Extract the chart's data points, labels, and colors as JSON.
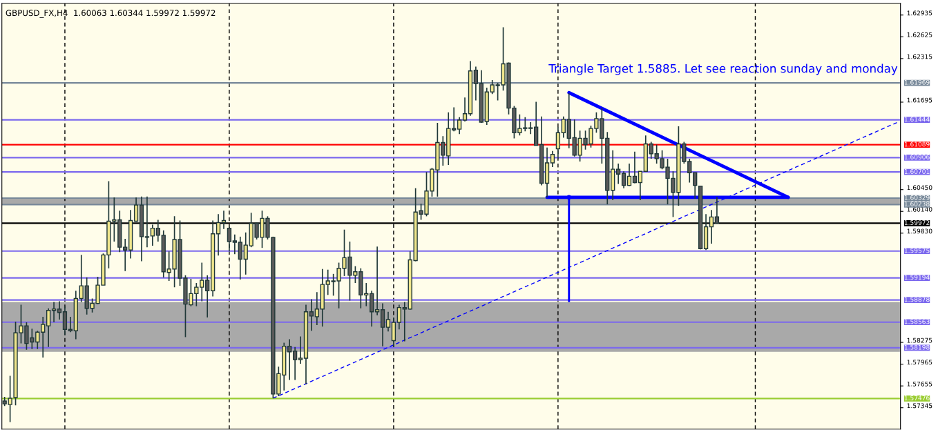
{
  "chart_data": {
    "type": "candlestick",
    "title": "GBPUSD_FX,H4  1.60063 1.60344 1.59972 1.59972",
    "annotations": [
      "Triangle Target 1.5885. Let see reaction sunday and monday"
    ],
    "categories": [
      null,
      null,
      null,
      null,
      null,
      null,
      null,
      null,
      null,
      null,
      null,
      null,
      null,
      null,
      null,
      null,
      null,
      null,
      null,
      null,
      null,
      null,
      null,
      null,
      null,
      null,
      null,
      null,
      null,
      null,
      null,
      null,
      null,
      null,
      null,
      null,
      null,
      null,
      null,
      null,
      null,
      null,
      null,
      null,
      null,
      null,
      null,
      null,
      null,
      null,
      null,
      null,
      null,
      null,
      null,
      null,
      null,
      null,
      null,
      null,
      null,
      null,
      null,
      null,
      null,
      null,
      null,
      null,
      null,
      null,
      null,
      null,
      null,
      null,
      null,
      null,
      null,
      null,
      null,
      null,
      null,
      null,
      null,
      null,
      null,
      null,
      null,
      null,
      null,
      null,
      null,
      null,
      null,
      null,
      null,
      null,
      null,
      null,
      null,
      null,
      null,
      null,
      null,
      null,
      null,
      null,
      null,
      null,
      null,
      null,
      null,
      null,
      null,
      null,
      null,
      null,
      null,
      null,
      null,
      null,
      null,
      null,
      null,
      null,
      null,
      null,
      null,
      null,
      null,
      null,
      null,
      null,
      null,
      null,
      null,
      null,
      null,
      null,
      null,
      null,
      null,
      null,
      null,
      null,
      null,
      null,
      null,
      null,
      null,
      null,
      null,
      null,
      null,
      null,
      null,
      null,
      null,
      null,
      null,
      null,
      null,
      null,
      null,
      null
    ],
    "ohlc": [
      [
        1.5744,
        1.575,
        1.5737,
        1.574
      ],
      [
        1.5739,
        1.578,
        1.5714,
        1.5748
      ],
      [
        1.5749,
        1.5857,
        1.5738,
        1.5841
      ],
      [
        1.5841,
        1.5881,
        1.5826,
        1.5851
      ],
      [
        1.5851,
        1.5856,
        1.5817,
        1.5826
      ],
      [
        1.5834,
        1.5847,
        1.5818,
        1.5828
      ],
      [
        1.5828,
        1.5844,
        1.5818,
        1.5842
      ],
      [
        1.5842,
        1.5864,
        1.5806,
        1.5853
      ],
      [
        1.5851,
        1.5876,
        1.5821,
        1.5873
      ],
      [
        1.5873,
        1.5885,
        1.5856,
        1.5875
      ],
      [
        1.5875,
        1.5886,
        1.586,
        1.587
      ],
      [
        1.5871,
        1.5879,
        1.5838,
        1.5846
      ],
      [
        1.5846,
        1.5864,
        1.5842,
        1.5844
      ],
      [
        1.5844,
        1.5901,
        1.5832,
        1.589
      ],
      [
        1.589,
        1.5952,
        1.5885,
        1.5908
      ],
      [
        1.5908,
        1.592,
        1.5867,
        1.5876
      ],
      [
        1.5876,
        1.589,
        1.587,
        1.5883
      ],
      [
        1.5883,
        1.5921,
        1.5882,
        1.5909
      ],
      [
        1.5909,
        1.5954,
        1.5909,
        1.5952
      ],
      [
        1.5952,
        1.6057,
        1.5933,
        1.6
      ],
      [
        1.6,
        1.6034,
        1.5971,
        1.6002
      ],
      [
        1.6002,
        1.6015,
        1.5956,
        1.5963
      ],
      [
        1.5963,
        1.5975,
        1.5929,
        1.5959
      ],
      [
        1.5959,
        1.6016,
        1.5947,
        1.6001
      ],
      [
        1.6,
        1.6034,
        1.5999,
        1.6023
      ],
      [
        1.6023,
        1.6035,
        1.5943,
        1.5978
      ],
      [
        1.5978,
        1.6035,
        1.5963,
        1.5977
      ],
      [
        1.5979,
        1.5995,
        1.5965,
        1.599
      ],
      [
        1.599,
        1.6002,
        1.5971,
        1.598
      ],
      [
        1.598,
        1.5987,
        1.592,
        1.5928
      ],
      [
        1.5927,
        1.5957,
        1.5915,
        1.5932
      ],
      [
        1.5932,
        1.6007,
        1.5906,
        1.5974
      ],
      [
        1.5974,
        1.6001,
        1.5908,
        1.5919
      ],
      [
        1.5919,
        1.5923,
        1.5835,
        1.5882
      ],
      [
        1.5881,
        1.5918,
        1.5879,
        1.5897
      ],
      [
        1.5897,
        1.5912,
        1.5879,
        1.5906
      ],
      [
        1.5906,
        1.5941,
        1.5886,
        1.5916
      ],
      [
        1.5916,
        1.5923,
        1.5863,
        1.5901
      ],
      [
        1.5901,
        1.6001,
        1.5893,
        1.5982
      ],
      [
        1.5982,
        1.601,
        1.5951,
        1.5998
      ],
      [
        1.5998,
        1.6015,
        1.5989,
        1.6001
      ],
      [
        1.599,
        1.5992,
        1.5957,
        1.5971
      ],
      [
        1.5972,
        1.5981,
        1.5953,
        1.597
      ],
      [
        1.597,
        1.5978,
        1.5917,
        1.5946
      ],
      [
        1.5946,
        1.5984,
        1.5924,
        1.5966
      ],
      [
        1.5965,
        1.6012,
        1.5963,
        1.5997
      ],
      [
        1.5997,
        1.5998,
        1.5974,
        1.5977
      ],
      [
        1.5977,
        1.6015,
        1.5962,
        1.6004
      ],
      [
        1.6004,
        1.6007,
        1.5974,
        1.5977
      ],
      [
        1.5977,
        1.5978,
        1.5748,
        1.5754
      ],
      [
        1.5754,
        1.5793,
        1.5751,
        1.5783
      ],
      [
        1.5781,
        1.5827,
        1.5759,
        1.5822
      ],
      [
        1.5822,
        1.5832,
        1.5774,
        1.5814
      ],
      [
        1.5815,
        1.5821,
        1.5774,
        1.5803
      ],
      [
        1.5803,
        1.5836,
        1.5797,
        1.5805
      ],
      [
        1.5805,
        1.5881,
        1.5768,
        1.5871
      ],
      [
        1.5871,
        1.5889,
        1.5844,
        1.5865
      ],
      [
        1.5864,
        1.5899,
        1.5852,
        1.5875
      ],
      [
        1.5875,
        1.5932,
        1.585,
        1.591
      ],
      [
        1.591,
        1.5931,
        1.5895,
        1.5915
      ],
      [
        1.5914,
        1.5925,
        1.5894,
        1.5915
      ],
      [
        1.5915,
        1.5941,
        1.5876,
        1.5933
      ],
      [
        1.5933,
        1.5988,
        1.5922,
        1.5948
      ],
      [
        1.5949,
        1.5971,
        1.5887,
        1.5923
      ],
      [
        1.5923,
        1.5936,
        1.5912,
        1.5928
      ],
      [
        1.5928,
        1.5933,
        1.5876,
        1.5895
      ],
      [
        1.5895,
        1.5912,
        1.5879,
        1.5897
      ],
      [
        1.5897,
        1.5901,
        1.585,
        1.5871
      ],
      [
        1.5871,
        1.5964,
        1.5866,
        1.5874
      ],
      [
        1.5874,
        1.5883,
        1.5822,
        1.5849
      ],
      [
        1.5849,
        1.5871,
        1.5843,
        1.586
      ],
      [
        1.583,
        1.5863,
        1.5821,
        1.5856
      ],
      [
        1.5856,
        1.5881,
        1.5846,
        1.5877
      ],
      [
        1.5877,
        1.5885,
        1.5829,
        1.5875
      ],
      [
        1.5875,
        1.5957,
        1.5874,
        1.5945
      ],
      [
        1.5944,
        1.6047,
        1.5943,
        1.6013
      ],
      [
        1.6015,
        1.6025,
        1.6002,
        1.601
      ],
      [
        1.601,
        1.607,
        1.6007,
        1.6043
      ],
      [
        1.6043,
        1.6076,
        1.6035,
        1.6074
      ],
      [
        1.6073,
        1.614,
        1.6035,
        1.6112
      ],
      [
        1.6112,
        1.6121,
        1.6079,
        1.6094
      ],
      [
        1.6093,
        1.6155,
        1.608,
        1.6132
      ],
      [
        1.6132,
        1.6162,
        1.6128,
        1.613
      ],
      [
        1.6131,
        1.6148,
        1.6124,
        1.6144
      ],
      [
        1.6144,
        1.6176,
        1.6142,
        1.6153
      ],
      [
        1.6153,
        1.6228,
        1.615,
        1.6214
      ],
      [
        1.6215,
        1.622,
        1.6172,
        1.6196
      ],
      [
        1.6196,
        1.6215,
        1.614,
        1.6141
      ],
      [
        1.6142,
        1.619,
        1.6137,
        1.6184
      ],
      [
        1.6184,
        1.6201,
        1.6181,
        1.6194
      ],
      [
        1.6194,
        1.6197,
        1.6172,
        1.6193
      ],
      [
        1.6194,
        1.6276,
        1.6186,
        1.6224
      ],
      [
        1.6225,
        1.6226,
        1.6152,
        1.6161
      ],
      [
        1.6161,
        1.6164,
        1.6118,
        1.6126
      ],
      [
        1.6126,
        1.6152,
        1.6122,
        1.6132
      ],
      [
        1.6133,
        1.6148,
        1.6128,
        1.6132
      ],
      [
        1.6132,
        1.6141,
        1.6124,
        1.6133
      ],
      [
        1.6134,
        1.617,
        1.6108,
        1.6108
      ],
      [
        1.6109,
        1.6149,
        1.6051,
        1.6054
      ],
      [
        1.6054,
        1.6105,
        1.6034,
        1.6083
      ],
      [
        1.6083,
        1.61,
        1.6077,
        1.6095
      ],
      [
        1.6103,
        1.6134,
        1.6089,
        1.6126
      ],
      [
        1.6126,
        1.6149,
        1.6119,
        1.6145
      ],
      [
        1.6145,
        1.6182,
        1.6104,
        1.6118
      ],
      [
        1.6119,
        1.6145,
        1.6092,
        1.6094
      ],
      [
        1.6094,
        1.6129,
        1.6085,
        1.6118
      ],
      [
        1.6118,
        1.6129,
        1.6102,
        1.6109
      ],
      [
        1.611,
        1.6136,
        1.6105,
        1.6132
      ],
      [
        1.6132,
        1.6155,
        1.6126,
        1.6146
      ],
      [
        1.6146,
        1.6161,
        1.6082,
        1.6118
      ],
      [
        1.6118,
        1.6127,
        1.6024,
        1.6044
      ],
      [
        1.6044,
        1.6101,
        1.603,
        1.6074
      ],
      [
        1.6074,
        1.6082,
        1.6053,
        1.6067
      ],
      [
        1.6068,
        1.6071,
        1.6047,
        1.6051
      ],
      [
        1.6051,
        1.6082,
        1.605,
        1.6064
      ],
      [
        1.6064,
        1.6099,
        1.6054,
        1.6055
      ],
      [
        1.6055,
        1.6071,
        1.603,
        1.6071
      ],
      [
        1.6071,
        1.6122,
        1.6071,
        1.611
      ],
      [
        1.611,
        1.6113,
        1.6089,
        1.6096
      ],
      [
        1.6096,
        1.6109,
        1.6082,
        1.6089
      ],
      [
        1.6089,
        1.6101,
        1.6074,
        1.6076
      ],
      [
        1.6077,
        1.6089,
        1.6024,
        1.6061
      ],
      [
        1.6061,
        1.6071,
        1.6006,
        1.6041
      ],
      [
        1.6041,
        1.6135,
        1.6022,
        1.611
      ],
      [
        1.611,
        1.6113,
        1.6082,
        1.6085
      ],
      [
        1.6085,
        1.6089,
        1.6055,
        1.6069
      ],
      [
        1.6069,
        1.6069,
        1.6032,
        1.6051
      ],
      [
        1.605,
        1.605,
        1.596,
        1.5961
      ],
      [
        1.5961,
        1.601,
        1.5959,
        1.5992
      ],
      [
        1.5992,
        1.6016,
        1.5968,
        1.6006
      ],
      [
        1.60063,
        1.60344,
        1.59972,
        1.59972
      ],
      null,
      null,
      null,
      null,
      null,
      null,
      null,
      null,
      null,
      null,
      null,
      null,
      null,
      null,
      null,
      null,
      null,
      null,
      null,
      null,
      null,
      null,
      null,
      null,
      null,
      null,
      null,
      null,
      null,
      null,
      null,
      null,
      null
    ],
    "colors": [
      "#5a5a5a",
      "#f0e68c",
      "#f0e68c",
      "#f0e68c",
      "#5a5a5a",
      "#5a5a5a",
      "#f0e68c",
      "#f0e68c",
      "#f0e68c",
      "#f0e68c",
      "#5a5a5a",
      "#5a5a5a",
      "#5a5a5a",
      "#f0e68c",
      "#f0e68c",
      "#5a5a5a",
      "#f0e68c",
      "#f0e68c",
      "#f0e68c",
      "#f0e68c",
      "#f0e68c",
      "#5a5a5a",
      "#5a5a5a",
      "#f0e68c",
      "#f0e68c",
      "#5a5a5a",
      "#5a5a5a",
      "#f0e68c",
      "#5a5a5a",
      "#5a5a5a",
      "#f0e68c",
      "#f0e68c",
      "#5a5a5a",
      "#5a5a5a",
      "#f0e68c",
      "#f0e68c",
      "#f0e68c",
      "#5a5a5a",
      "#f0e68c",
      "#f0e68c",
      "#f0e68c",
      "#5a5a5a",
      "#5a5a5a",
      "#5a5a5a",
      "#f0e68c",
      "#f0e68c",
      "#5a5a5a",
      "#f0e68c",
      "#5a5a5a",
      "#5a5a5a",
      "#f0e68c",
      "#f0e68c",
      "#5a5a5a",
      "#5a5a5a",
      "#f0e68c",
      "#f0e68c",
      "#5a5a5a",
      "#f0e68c",
      "#f0e68c",
      "#f0e68c",
      "#f0e68c",
      "#f0e68c",
      "#f0e68c",
      "#5a5a5a",
      "#f0e68c",
      "#5a5a5a",
      "#f0e68c",
      "#5a5a5a",
      "#f0e68c",
      "#5a5a5a",
      "#f0e68c",
      "#f0e68c",
      "#f0e68c",
      "#5a5a5a",
      "#f0e68c",
      "#f0e68c",
      "#5a5a5a",
      "#f0e68c",
      "#f0e68c",
      "#f0e68c",
      "#5a5a5a",
      "#f0e68c",
      "#5a5a5a",
      "#f0e68c",
      "#f0e68c",
      "#f0e68c",
      "#5a5a5a",
      "#5a5a5a",
      "#f0e68c",
      "#f0e68c",
      "#5a5a5a",
      "#f0e68c",
      "#5a5a5a",
      "#5a5a5a",
      "#f0e68c",
      "#5a5a5a",
      "#f0e68c",
      "#5a5a5a",
      "#5a5a5a",
      "#f0e68c",
      "#f0e68c",
      "#f0e68c",
      "#f0e68c",
      "#5a5a5a",
      "#5a5a5a",
      "#f0e68c",
      "#5a5a5a",
      "#f0e68c",
      "#f0e68c",
      "#5a5a5a",
      "#5a5a5a",
      "#f0e68c",
      "#5a5a5a",
      "#5a5a5a",
      "#f0e68c",
      "#5a5a5a",
      "#f0e68c",
      "#f0e68c",
      "#5a5a5a",
      "#5a5a5a",
      "#5a5a5a",
      "#5a5a5a",
      "#5a5a5a",
      "#f0e68c",
      "#5a5a5a",
      "#5a5a5a",
      "#5a5a5a",
      "#5a5a5a",
      "#f0e68c",
      "#f0e68c",
      "#5a5a5a",
      null,
      null,
      null,
      null,
      null,
      null,
      null,
      null,
      null,
      null,
      null,
      null,
      null,
      null,
      null,
      null,
      null,
      null,
      null,
      null,
      null,
      null,
      null,
      null,
      null,
      null,
      null,
      null,
      null,
      null,
      null,
      null,
      null
    ],
    "series": [
      {
        "type": "line",
        "color": "#0000ff",
        "line_style": "dashed",
        "values": [
          null,
          null,
          null,
          null,
          null,
          null,
          null,
          null,
          null,
          null,
          null,
          null,
          null,
          null,
          null,
          null,
          null,
          null,
          null,
          null,
          null,
          null,
          null,
          null,
          null,
          null,
          null,
          null,
          null,
          null,
          null,
          null,
          null,
          null,
          null,
          null,
          null,
          null,
          null,
          null,
          null,
          null,
          null,
          null,
          null,
          null,
          null,
          null,
          null,
          1.5748,
          null,
          null,
          null,
          null,
          null,
          null,
          null,
          null,
          null,
          null,
          null,
          null,
          null,
          null,
          null,
          null,
          null,
          null,
          null,
          null,
          null,
          null,
          null,
          null,
          null,
          null,
          null,
          null,
          null,
          null,
          null,
          null,
          null,
          null,
          null,
          null,
          null,
          null,
          null,
          null,
          null,
          null,
          null,
          null,
          null,
          null,
          null,
          null,
          null,
          null,
          null,
          null,
          null,
          null,
          null,
          null,
          null,
          null,
          null,
          null,
          null,
          null,
          null,
          null,
          null,
          null,
          null,
          null,
          null,
          null,
          null,
          null,
          null,
          null,
          null,
          null,
          null,
          null,
          null,
          null,
          null,
          null,
          null,
          null,
          null,
          null,
          null,
          null,
          null,
          null,
          null,
          null,
          null,
          null,
          null,
          null,
          null,
          null,
          null,
          null,
          null,
          null,
          null,
          null,
          null,
          null,
          null,
          null,
          null,
          null,
          null,
          null,
          null,
          1.6141
        ]
      },
      {
        "type": "line",
        "color": "#0000ff",
        "line_style": "solid",
        "values": [
          null,
          null,
          null,
          null,
          null,
          null,
          null,
          null,
          null,
          null,
          null,
          null,
          null,
          null,
          null,
          null,
          null,
          null,
          null,
          null,
          null,
          null,
          null,
          null,
          null,
          null,
          null,
          null,
          null,
          null,
          null,
          null,
          null,
          null,
          null,
          null,
          null,
          null,
          null,
          null,
          null,
          null,
          null,
          null,
          null,
          null,
          null,
          null,
          null,
          null,
          null,
          null,
          null,
          null,
          null,
          null,
          null,
          null,
          null,
          null,
          null,
          null,
          null,
          null,
          null,
          null,
          null,
          null,
          null,
          null,
          null,
          null,
          null,
          null,
          null,
          null,
          null,
          null,
          null,
          null,
          null,
          null,
          null,
          null,
          null,
          null,
          null,
          null,
          null,
          null,
          null,
          null,
          null,
          null,
          null,
          null,
          null,
          null,
          null,
          null,
          null,
          null,
          null,
          1.6183,
          null,
          null,
          null,
          null,
          null,
          null,
          null,
          null,
          null,
          null,
          null,
          null,
          null,
          null,
          null,
          null,
          null,
          null,
          null,
          null,
          null,
          null,
          null,
          null,
          null,
          null,
          null,
          null,
          null,
          null,
          null,
          null,
          null,
          null,
          null,
          null,
          null,
          null,
          null,
          1.6034,
          null,
          null,
          null,
          null,
          null,
          null,
          null,
          null,
          null,
          null,
          null,
          null,
          null,
          null,
          null,
          null,
          null,
          null,
          null,
          null
        ]
      },
      {
        "type": "line",
        "color": "#0000ff",
        "line_style": "solid",
        "values": [
          null,
          null,
          null,
          null,
          null,
          null,
          null,
          null,
          null,
          null,
          null,
          null,
          null,
          null,
          null,
          null,
          null,
          null,
          null,
          null,
          null,
          null,
          null,
          null,
          null,
          null,
          null,
          null,
          null,
          null,
          null,
          null,
          null,
          null,
          null,
          null,
          null,
          null,
          null,
          null,
          null,
          null,
          null,
          null,
          null,
          null,
          null,
          null,
          null,
          null,
          null,
          null,
          null,
          null,
          null,
          null,
          null,
          null,
          null,
          null,
          null,
          null,
          null,
          null,
          null,
          null,
          null,
          null,
          null,
          null,
          null,
          null,
          null,
          null,
          null,
          null,
          null,
          null,
          null,
          null,
          null,
          null,
          null,
          null,
          null,
          null,
          null,
          null,
          null,
          null,
          null,
          null,
          null,
          null,
          null,
          null,
          null,
          null,
          null,
          1.6034,
          null,
          null,
          null,
          null,
          null,
          null,
          null,
          null,
          null,
          null,
          null,
          null,
          null,
          null,
          null,
          null,
          null,
          null,
          null,
          null,
          null,
          null,
          null,
          null,
          null,
          null,
          null,
          null,
          null,
          null,
          null,
          null,
          null,
          null,
          null,
          null,
          null,
          null,
          null,
          null,
          null,
          null,
          null,
          1.6034,
          null,
          null,
          null,
          null,
          null,
          null,
          null,
          null,
          null,
          null,
          null,
          null,
          null,
          null,
          null,
          null,
          null,
          null,
          null,
          null
        ]
      },
      {
        "type": "line",
        "color": "#0000ff",
        "line_style": "solid",
        "marker": "circle",
        "values": [
          null,
          null,
          null,
          null,
          null,
          null,
          null,
          null,
          null,
          null,
          null,
          null,
          null,
          null,
          null,
          null,
          null,
          null,
          null,
          null,
          null,
          null,
          null,
          null,
          null,
          null,
          null,
          null,
          null,
          null,
          null,
          null,
          null,
          null,
          null,
          null,
          null,
          null,
          null,
          null,
          null,
          null,
          null,
          null,
          null,
          null,
          null,
          null,
          null,
          null,
          null,
          null,
          null,
          null,
          null,
          null,
          null,
          null,
          null,
          null,
          null,
          null,
          null,
          null,
          null,
          null,
          null,
          null,
          null,
          null,
          null,
          null,
          null,
          null,
          null,
          null,
          null,
          null,
          null,
          null,
          null,
          null,
          null,
          null,
          null,
          null,
          null,
          null,
          null,
          null,
          null,
          null,
          null,
          null,
          null,
          null,
          null,
          null,
          null,
          null,
          null,
          null,
          null,
          1.6034,
          null,
          null,
          null,
          null,
          null,
          null,
          null,
          null,
          null,
          null,
          null,
          null,
          null,
          null,
          null,
          null,
          null,
          null,
          null,
          null,
          null,
          null,
          null,
          null,
          null,
          null,
          null,
          null,
          null,
          null,
          null,
          null,
          null,
          null,
          null,
          null,
          null,
          null,
          null,
          null,
          null,
          null,
          null,
          null,
          null,
          null,
          null,
          null,
          null,
          null,
          null,
          null,
          null,
          null,
          null,
          null,
          null,
          null,
          null,
          null
        ],
        "errors": [
          null,
          null,
          null,
          null,
          null,
          null,
          null,
          null,
          null,
          null,
          null,
          null,
          null,
          null,
          null,
          null,
          null,
          null,
          null,
          null,
          null,
          null,
          null,
          null,
          null,
          null,
          null,
          null,
          null,
          null,
          null,
          null,
          null,
          null,
          null,
          null,
          null,
          null,
          null,
          null,
          null,
          null,
          null,
          null,
          null,
          null,
          null,
          null,
          null,
          null,
          null,
          null,
          null,
          null,
          null,
          null,
          null,
          null,
          null,
          null,
          null,
          null,
          null,
          null,
          null,
          null,
          null,
          null,
          null,
          null,
          null,
          null,
          null,
          null,
          null,
          null,
          null,
          null,
          null,
          null,
          null,
          null,
          null,
          null,
          null,
          null,
          null,
          null,
          null,
          null,
          null,
          null,
          null,
          null,
          null,
          null,
          null,
          null,
          null,
          null,
          null,
          null,
          null,
          [
            1.5885,
            1.6034
          ],
          null,
          null,
          null,
          null,
          null,
          null,
          null,
          null,
          null,
          null,
          null,
          null,
          null,
          null,
          null,
          null,
          null,
          null,
          null,
          null,
          null,
          null,
          null,
          null,
          null,
          null,
          null,
          null,
          null,
          null,
          null,
          null,
          null,
          null,
          null,
          null,
          null,
          null,
          null,
          null,
          null,
          null,
          null,
          null,
          null,
          null,
          null,
          null,
          null,
          null,
          null,
          null,
          null,
          null,
          null,
          null,
          null,
          null,
          null,
          null
        ]
      }
    ],
    "ref_lines": [
      {
        "axis": "y",
        "value": 1.61969,
        "label": "1.61969",
        "color": "#778899"
      },
      {
        "axis": "y",
        "value": 1.61444,
        "label": "1.61444",
        "color": "#7b68ee"
      },
      {
        "axis": "y",
        "value": 1.61089,
        "label": "1.61089",
        "color": "#ff0000"
      },
      {
        "axis": "y",
        "value": 1.60906,
        "label": "1.60906",
        "color": "#7b68ee"
      },
      {
        "axis": "y",
        "value": 1.60701,
        "label": "1.60701",
        "color": "#7b68ee"
      },
      {
        "axis": "y",
        "value": 1.60329,
        "label": "1.60329",
        "color": "#778899"
      },
      {
        "axis": "y",
        "value": 1.60238,
        "label": "1.60238",
        "color": "#778899"
      },
      {
        "axis": "y",
        "value": 1.59972,
        "label": "1.59972",
        "color": "#000000"
      },
      {
        "axis": "y",
        "value": 1.59575,
        "label": "1.59575",
        "color": "#7b68ee"
      },
      {
        "axis": "y",
        "value": 1.59194,
        "label": "1.59194",
        "color": "#7b68ee"
      },
      {
        "axis": "y",
        "value": 1.58878,
        "label": "1.58878",
        "color": "#7b68ee"
      },
      {
        "axis": "y",
        "value": 1.58563,
        "label": "1.58563",
        "color": "#7b68ee"
      },
      {
        "axis": "y",
        "value": 1.58198,
        "label": "1.58198",
        "color": "#7b68ee"
      },
      {
        "axis": "y",
        "value": 1.57476,
        "label": "1.57476",
        "color": "#9acd32"
      }
    ],
    "bands": [
      {
        "axis": "y",
        "from": 1.60238,
        "to": 1.60329,
        "color": "#a9a9a9"
      },
      {
        "axis": "y",
        "from": 1.5814,
        "to": 1.5885,
        "color": "#a9a9a9"
      }
    ],
    "ylim": [
      1.5704,
      1.631
    ],
    "yticks": [
      1.62935,
      1.62625,
      1.62315,
      1.61695,
      {
        "value": 1.6045,
        "label": "1.60450"
      },
      {
        "value": 1.6014,
        "label": "1.60140"
      },
      {
        "value": 1.5983,
        "label": "1.59830"
      },
      1.58275,
      1.57965,
      1.57655,
      1.57345
    ]
  }
}
